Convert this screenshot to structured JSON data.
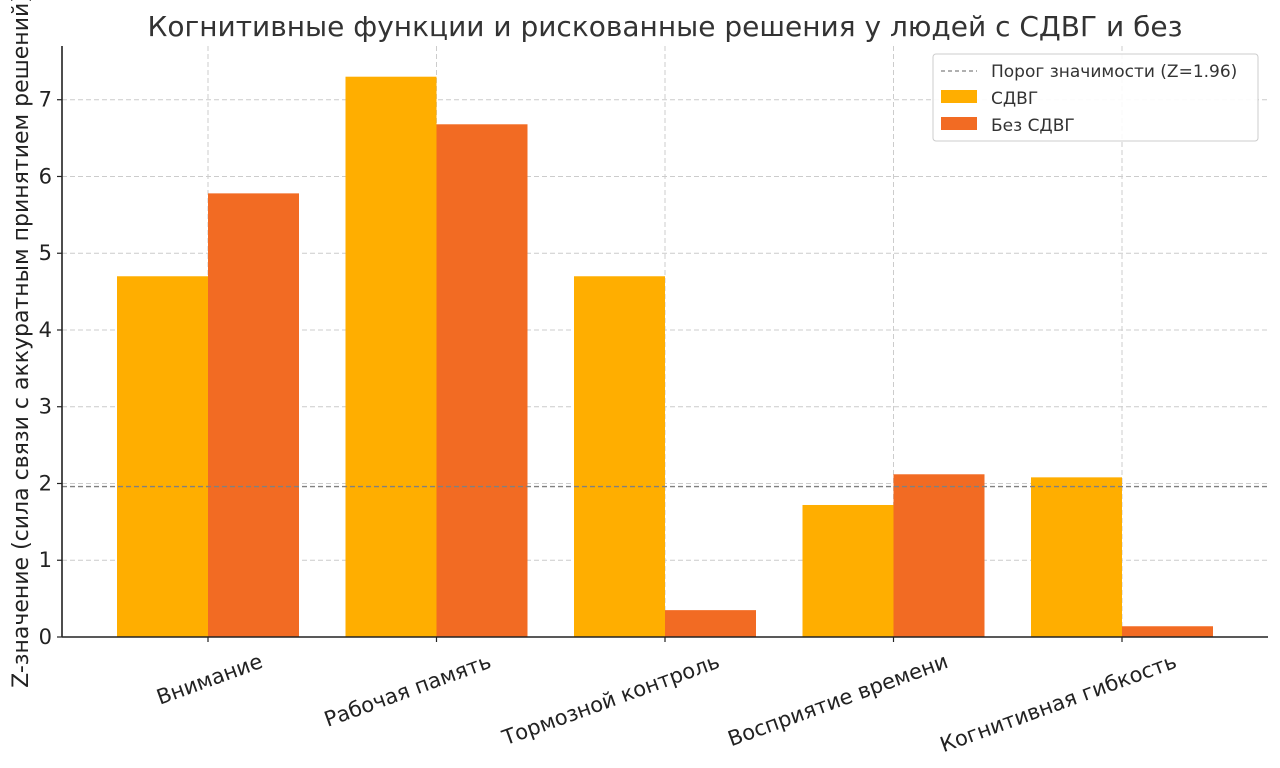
{
  "chart_data": {
    "type": "bar",
    "title": "Когнитивные функции и рискованные решения у людей с СДВГ и без",
    "xlabel": "",
    "ylabel": "Z-значение (сила связи с аккуратным принятием решений)",
    "categories": [
      "Внимание",
      "Рабочая память",
      "Тормозной контроль",
      "Восприятие времени",
      "Когнитивная гибкость"
    ],
    "series": [
      {
        "name": "СДВГ",
        "color": "#FFAE00",
        "values": [
          4.7,
          7.3,
          4.7,
          1.72,
          2.08
        ]
      },
      {
        "name": "Без СДВГ",
        "color": "#F26B23",
        "values": [
          5.78,
          6.68,
          0.35,
          2.12,
          0.14
        ]
      }
    ],
    "threshold": {
      "label": "Порог значимости (Z=1.96)",
      "value": 1.96,
      "color": "#808080"
    },
    "ylim": [
      0,
      7.7
    ],
    "yticks": [
      0,
      1,
      2,
      3,
      4,
      5,
      6,
      7
    ],
    "grid": true,
    "legend_position": "top-right"
  }
}
